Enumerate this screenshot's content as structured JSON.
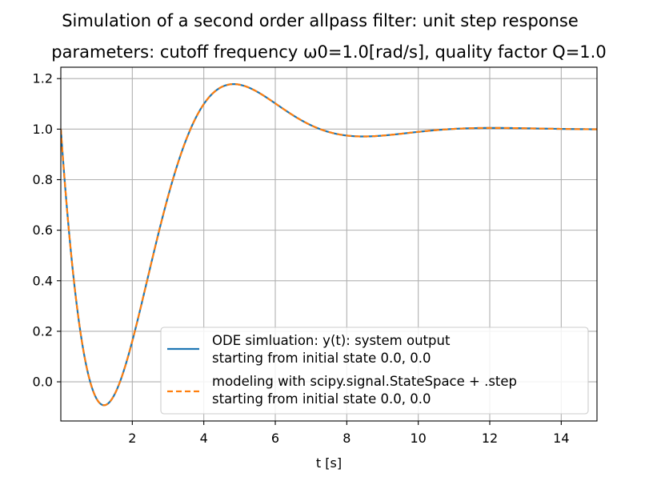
{
  "chart_data": {
    "type": "line",
    "title": "Simulation of a second order allpass filter: unit step response",
    "subtitle": "parameters: cutoff frequency ω0=1.0[rad/s], quality factor Q=1.0",
    "xlabel": "t [s]",
    "ylabel": "",
    "xlim": [
      0,
      15
    ],
    "ylim": [
      -0.155,
      1.245
    ],
    "grid": true,
    "legend_position": "lower right",
    "x_ticks": [
      2,
      4,
      6,
      8,
      10,
      12,
      14
    ],
    "x_tick_labels": [
      "2",
      "4",
      "6",
      "8",
      "10",
      "12",
      "14"
    ],
    "y_ticks": [
      0.0,
      0.2,
      0.4,
      0.6,
      0.8,
      1.0,
      1.2
    ],
    "y_tick_labels": [
      "0.0",
      "0.2",
      "0.4",
      "0.6",
      "0.8",
      "1.0",
      "1.2"
    ],
    "model": {
      "description": "second order allpass unit step response",
      "omega0": 1.0,
      "Q": 1.0,
      "initial_state": [
        0.0,
        0.0
      ]
    },
    "series": [
      {
        "name": "ODE simluation: y(t): system output\nstarting from initial state 0.0, 0.0",
        "legend_lines": [
          "ODE simluation: y(t): system output",
          "starting from initial state 0.0, 0.0"
        ],
        "color": "#1f77b4",
        "style": "solid"
      },
      {
        "name": "modeling with scipy.signal.StateSpace + .step\nstarting from initial state 0.0, 0.0",
        "legend_lines": [
          "modeling with scipy.signal.StateSpace + .step",
          "starting from initial state 0.0, 0.0"
        ],
        "color": "#ff7f0e",
        "style": "dashed"
      }
    ]
  }
}
